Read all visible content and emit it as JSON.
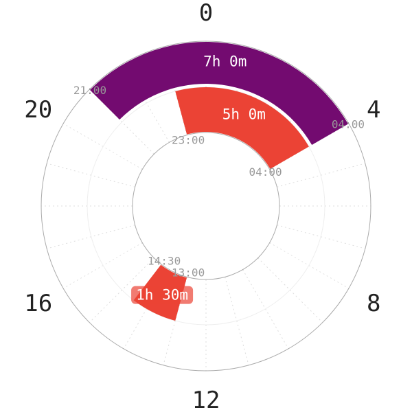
{
  "chart_data": {
    "type": "radial-bar",
    "axis": {
      "range": [
        0,
        24
      ],
      "unit": "hour",
      "direction": "clockwise",
      "zero": "top",
      "tick_labels": [
        "0",
        "4",
        "8",
        "12",
        "16",
        "20"
      ]
    },
    "grid": true,
    "segments": [
      {
        "ring": "outer",
        "start": 21,
        "end": 4,
        "start_label": "21:00",
        "end_label": "04:00",
        "duration_label": "7h 0m",
        "color": "#730b70"
      },
      {
        "ring": "inner",
        "start": 23,
        "end": 4,
        "start_label": "23:00",
        "end_label": "04:00",
        "duration_label": "5h 0m",
        "color": "#eb4335"
      },
      {
        "ring": "inner",
        "start": 13,
        "end": 14.5,
        "start_label": "13:00",
        "end_label": "14:30",
        "duration_label": "1h 30m",
        "color": "#eb4335"
      }
    ]
  }
}
